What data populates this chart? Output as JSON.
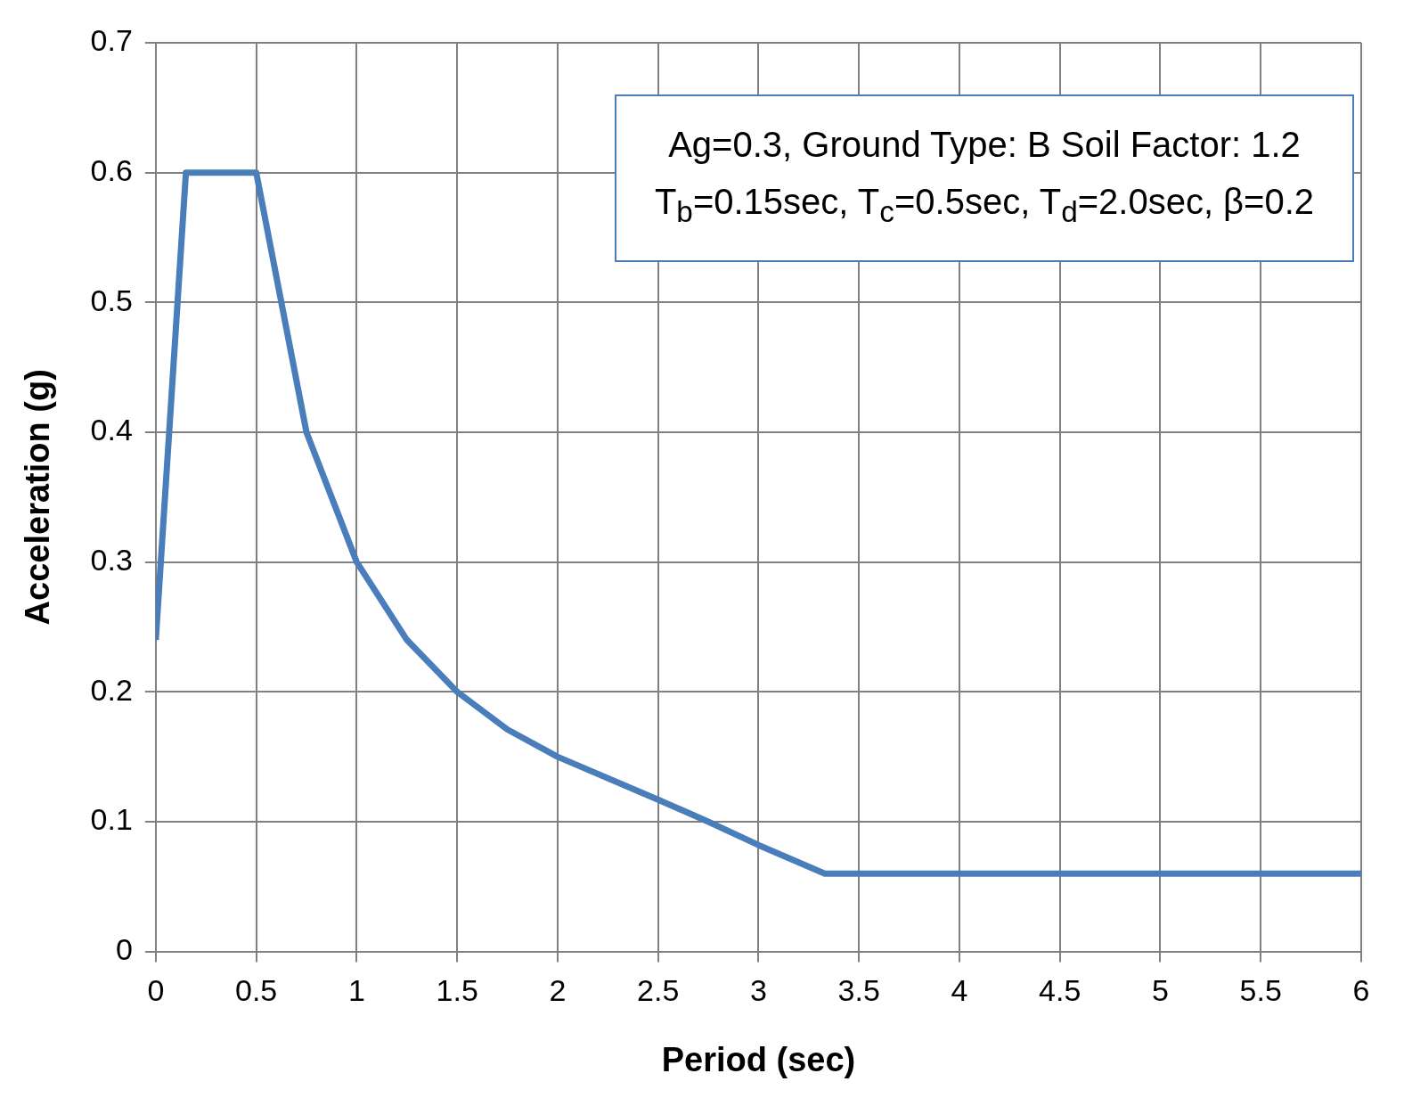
{
  "chart_data": {
    "type": "line",
    "xlabel": "Period (sec)",
    "ylabel": "Acceleration (g)",
    "annotations": [
      "Ag=0.3, Ground Type: B Soil Factor: 1.2",
      "T$_{b}$=0.15sec, T$_{c}$=0.5sec, T$_{d}$=2.0sec, β=0.2"
    ],
    "x": [
      0,
      0.05,
      0.1,
      0.15,
      0.5,
      0.75,
      1,
      1.25,
      1.5,
      1.75,
      2,
      2.5,
      2.75,
      3,
      3.33,
      6
    ],
    "series": [
      {
        "color": "#4a7ebb",
        "values": [
          0.24,
          0.36,
          0.48,
          0.6,
          0.6,
          0.4,
          0.3,
          0.24,
          0.2,
          0.171,
          0.15,
          0.117,
          0.1,
          0.082,
          0.06,
          0.06
        ]
      }
    ],
    "xlim": [
      0,
      6
    ],
    "xticks": [
      0,
      0.5,
      1,
      1.5,
      2,
      2.5,
      3,
      3.5,
      4,
      4.5,
      5,
      5.5,
      6
    ],
    "ylim": [
      0,
      0.7
    ],
    "yticks": [
      0,
      0.1,
      0.2,
      0.3,
      0.4,
      0.5,
      0.6,
      0.7
    ],
    "grid": true,
    "marker": "none",
    "line_style": "solid",
    "legend": false
  }
}
